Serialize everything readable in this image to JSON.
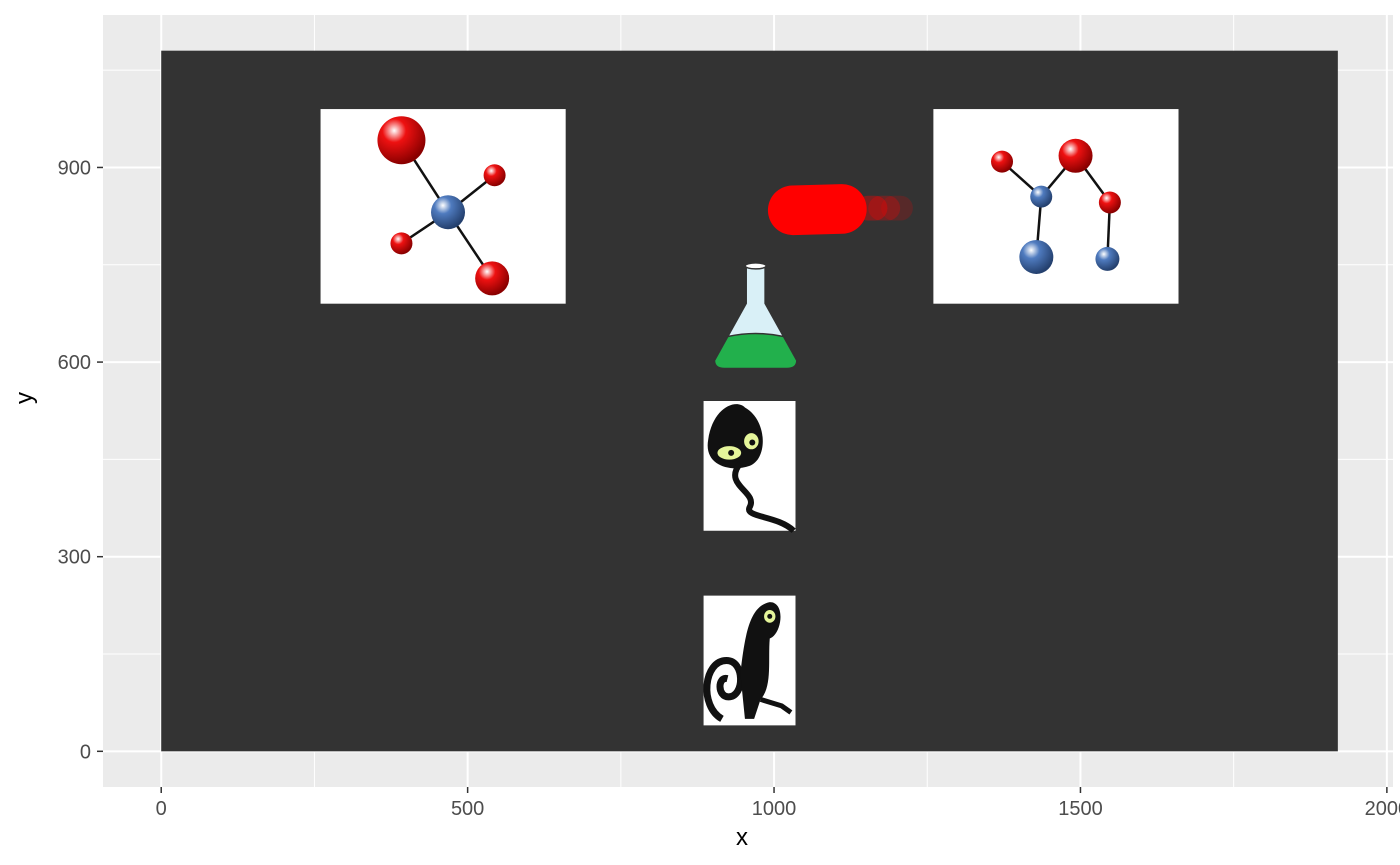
{
  "chart_data": {
    "type": "scatter",
    "title": "",
    "xlabel": "x",
    "ylabel": "y",
    "xlim": [
      -95,
      2010
    ],
    "ylim": [
      -55,
      1135
    ],
    "x_ticks": [
      0,
      500,
      1000,
      1500,
      2000
    ],
    "x_tick_labels": [
      "0",
      "500",
      "1000",
      "1500",
      "2000"
    ],
    "y_ticks": [
      0,
      300,
      600,
      900
    ],
    "y_tick_labels": [
      "0",
      "300",
      "600",
      "900"
    ],
    "grid": true,
    "legend": "none",
    "colors": {
      "panel_background": "#ebebeb",
      "grid_line": "#ffffff",
      "raster_background": "#333333",
      "pill": "#ff0000",
      "atom_red": "#ee1111",
      "atom_blue": "#4f7bbf",
      "flask_liquid": "#22b04c"
    },
    "raster_background": {
      "x": [
        0,
        1920
      ],
      "y": [
        0,
        1080
      ]
    },
    "images": [
      {
        "name": "molecule-1",
        "icon": "molecule-tetrahedral-icon",
        "x": [
          260,
          660
        ],
        "y": [
          690,
          990
        ]
      },
      {
        "name": "molecule-2",
        "icon": "molecule-chain-icon",
        "x": [
          1260,
          1660
        ],
        "y": [
          690,
          990
        ]
      },
      {
        "name": "pill",
        "icon": "red-pill-icon",
        "x": [
          990,
          1250
        ],
        "y": [
          790,
          880
        ]
      },
      {
        "name": "flask",
        "icon": "flask-icon",
        "x": [
          900,
          1040
        ],
        "y": [
          585,
          755
        ]
      },
      {
        "name": "creature-1",
        "icon": "cartoon-creature-icon",
        "x": [
          885,
          1035
        ],
        "y": [
          340,
          540
        ]
      },
      {
        "name": "creature-2",
        "icon": "cartoon-lizard-icon",
        "x": [
          885,
          1035
        ],
        "y": [
          40,
          240
        ]
      }
    ]
  }
}
